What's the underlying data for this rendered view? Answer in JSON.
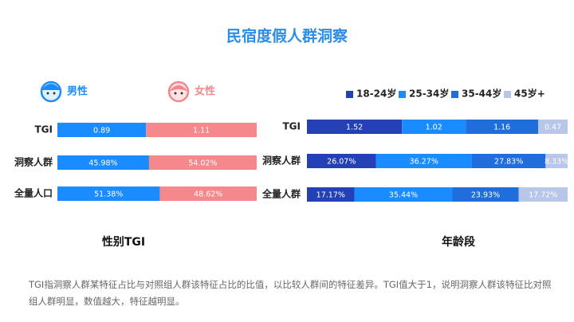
{
  "title": "民宿度假人群洞察",
  "note": "TGI指洞察人群某特征占比与对照组人群该特征占比的比值，以比较人群间的特征差异。TGI值大于1，说明洞察人群该特征比对照组人群明显，数值越大，特征越明显。",
  "chart_data": [
    {
      "type": "bar",
      "stacking": "percent",
      "orientation": "horizontal",
      "title": "性别TGI",
      "categories": [
        "TGI",
        "洞察人群",
        "全量人口"
      ],
      "series": [
        {
          "name": "男性",
          "color": "#1a8cff",
          "values": [
            0.89,
            45.98,
            51.38
          ],
          "value_labels": [
            "0.89",
            "45.98%",
            "51.38%"
          ]
        },
        {
          "name": "女性",
          "color": "#f4888c",
          "values": [
            1.11,
            54.02,
            48.62
          ],
          "value_labels": [
            "1.11",
            "54.02%",
            "48.62%"
          ]
        }
      ]
    },
    {
      "type": "bar",
      "stacking": "percent",
      "orientation": "horizontal",
      "title": "年龄段",
      "categories": [
        "TGI",
        "洞察人群",
        "全量人群"
      ],
      "series": [
        {
          "name": "18-24岁",
          "color": "#2341b5",
          "values": [
            1.52,
            26.07,
            17.17
          ],
          "value_labels": [
            "1.52",
            "26.07%",
            "17.17%"
          ]
        },
        {
          "name": "25-34岁",
          "color": "#1a8cff",
          "values": [
            1.02,
            36.27,
            35.44
          ],
          "value_labels": [
            "1.02",
            "36.27%",
            "35.44%"
          ]
        },
        {
          "name": "35-44岁",
          "color": "#1f6edb",
          "values": [
            1.16,
            27.83,
            23.93
          ],
          "value_labels": [
            "1.16",
            "27.83%",
            "23.93%"
          ]
        },
        {
          "name": "45岁+",
          "color": "#b8c6ea",
          "values": [
            0.47,
            8.33,
            17.72
          ],
          "value_labels": [
            "0.47",
            "8.33%",
            "17.72%"
          ]
        }
      ]
    }
  ]
}
